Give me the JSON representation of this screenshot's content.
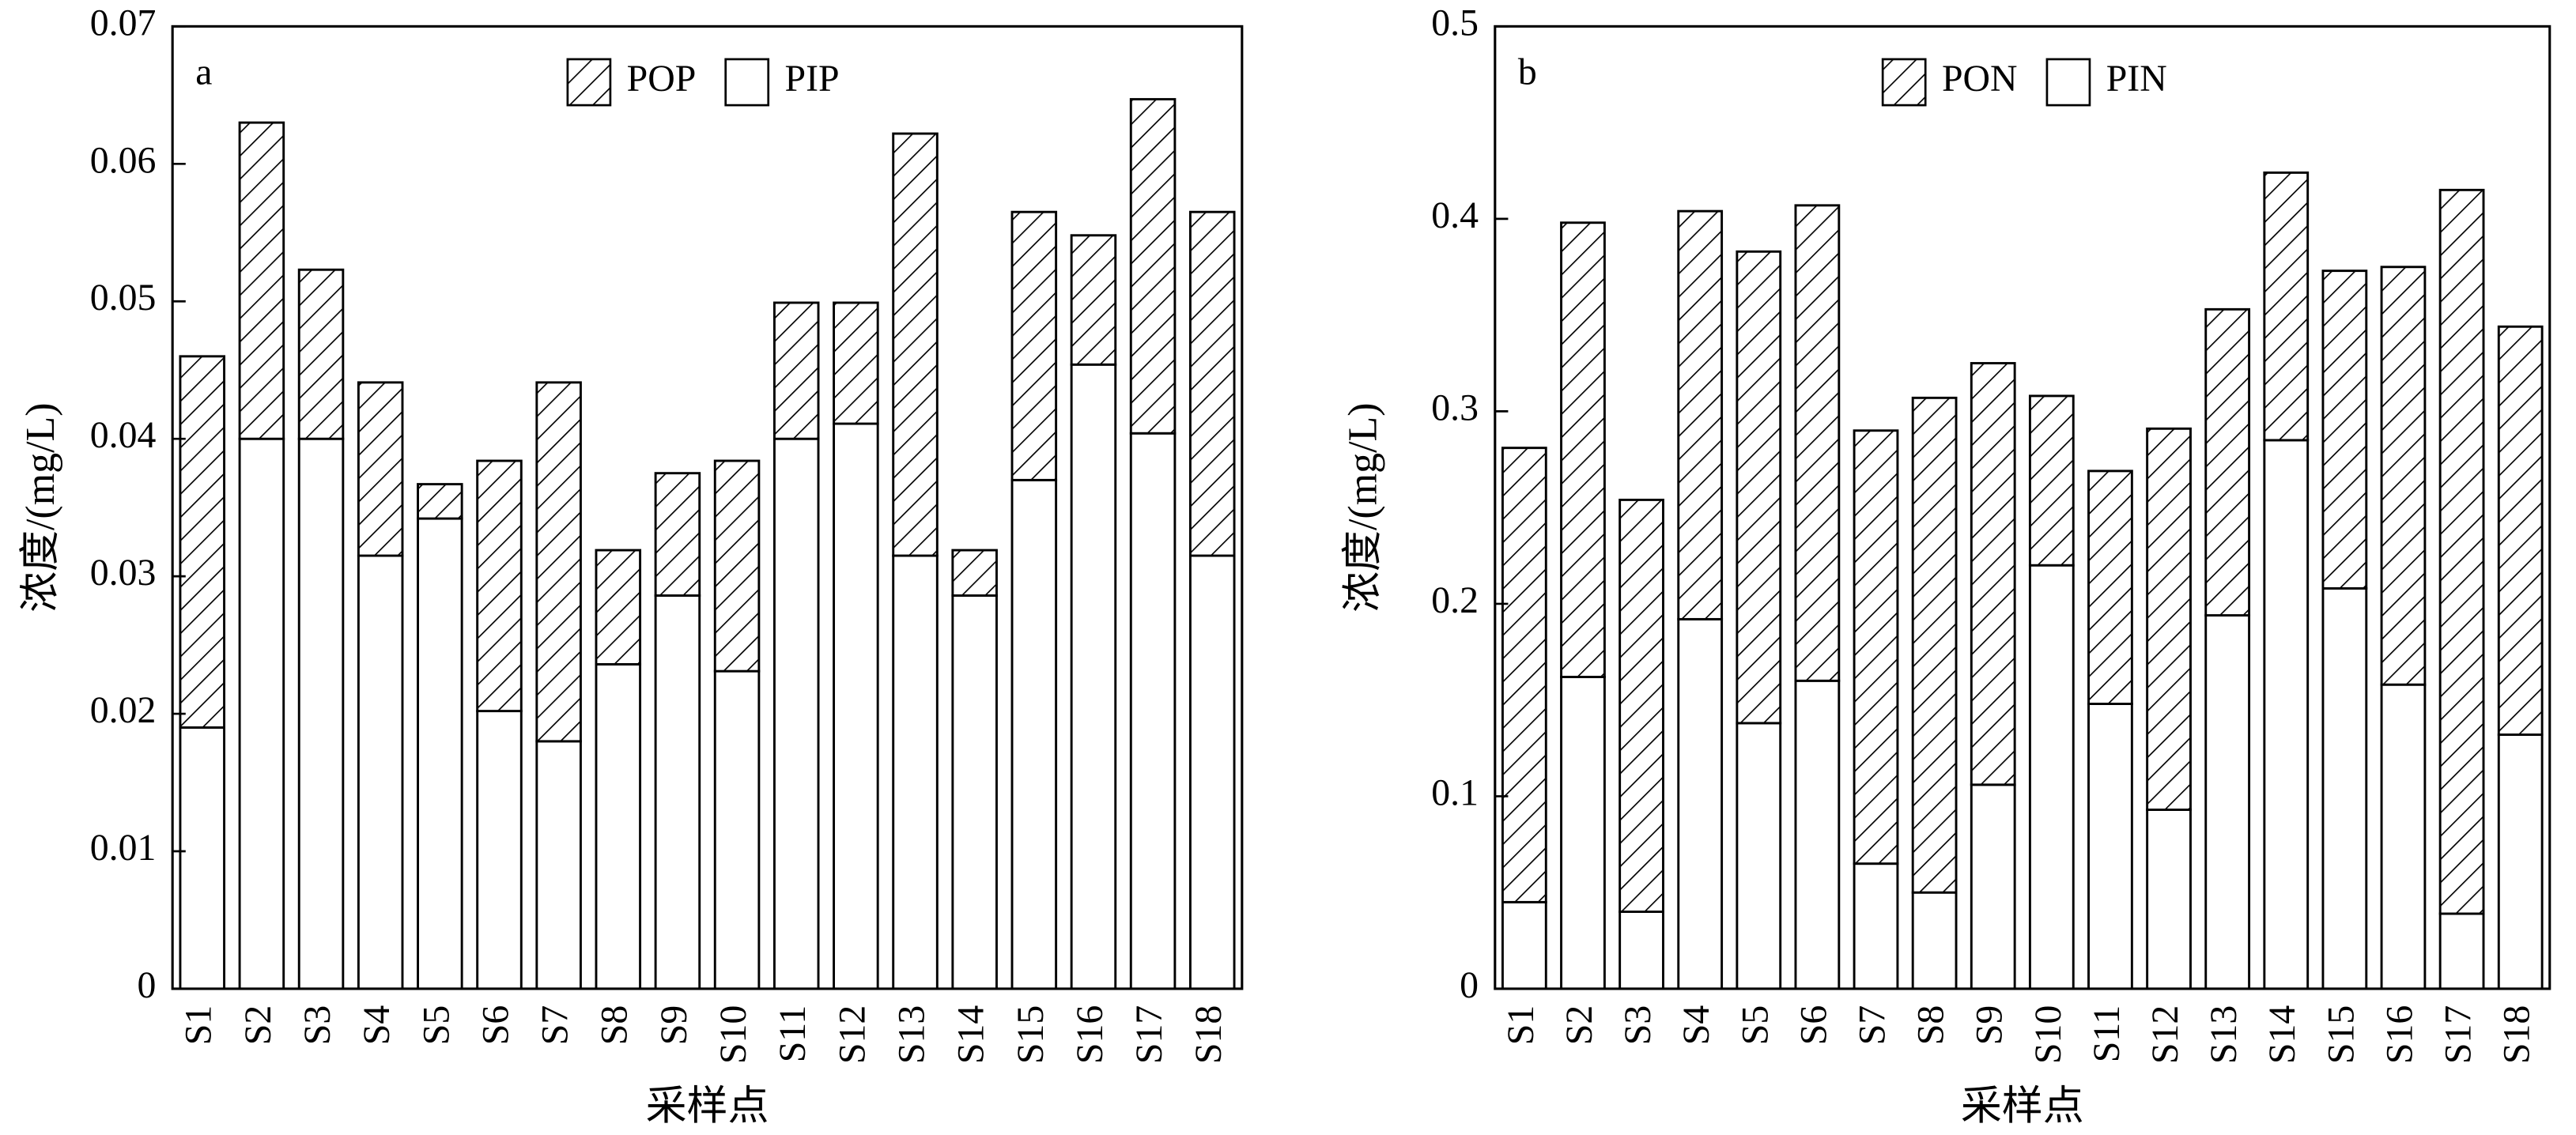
{
  "chart_data": [
    {
      "type": "bar",
      "stacked": true,
      "panel_label": "a",
      "xlabel": "采样点",
      "ylabel": "浓度/(mg/L)",
      "legend": "upper center",
      "categories": [
        "S1",
        "S2",
        "S3",
        "S4",
        "S5",
        "S6",
        "S7",
        "S8",
        "S9",
        "S10",
        "S11",
        "S12",
        "S13",
        "S14",
        "S15",
        "S16",
        "S17",
        "S18"
      ],
      "series": [
        {
          "name": "POP",
          "pattern": "hatch",
          "values": [
            0.027,
            0.023,
            0.0123,
            0.0126,
            0.0025,
            0.0182,
            0.0261,
            0.0083,
            0.0089,
            0.0153,
            0.0099,
            0.0088,
            0.0307,
            0.0033,
            0.0195,
            0.0094,
            0.0243,
            0.025
          ]
        },
        {
          "name": "PIP",
          "color": "#ffffff",
          "values": [
            0.019,
            0.04,
            0.04,
            0.0315,
            0.0342,
            0.0202,
            0.018,
            0.0236,
            0.0286,
            0.0231,
            0.04,
            0.0411,
            0.0315,
            0.0286,
            0.037,
            0.0454,
            0.0404,
            0.0315
          ]
        }
      ],
      "ylim": [
        0,
        0.07
      ],
      "yticks": [
        0,
        0.01,
        0.02,
        0.03,
        0.04,
        0.05,
        0.06,
        0.07
      ]
    },
    {
      "type": "bar",
      "stacked": true,
      "panel_label": "b",
      "xlabel": "采样点",
      "ylabel": "浓度/(mg/L)",
      "legend": "upper center",
      "categories": [
        "S1",
        "S2",
        "S3",
        "S4",
        "S5",
        "S6",
        "S7",
        "S8",
        "S9",
        "S10",
        "S11",
        "S12",
        "S13",
        "S14",
        "S15",
        "S16",
        "S17",
        "S18"
      ],
      "series": [
        {
          "name": "PON",
          "pattern": "hatch",
          "values": [
            0.236,
            0.236,
            0.214,
            0.212,
            0.245,
            0.247,
            0.225,
            0.257,
            0.219,
            0.088,
            0.121,
            0.198,
            0.159,
            0.139,
            0.165,
            0.217,
            0.376,
            0.212
          ]
        },
        {
          "name": "PIN",
          "color": "#ffffff",
          "values": [
            0.045,
            0.162,
            0.04,
            0.192,
            0.138,
            0.16,
            0.065,
            0.05,
            0.106,
            0.22,
            0.148,
            0.093,
            0.194,
            0.285,
            0.208,
            0.158,
            0.039,
            0.132
          ]
        }
      ],
      "ylim": [
        0,
        0.5
      ],
      "yticks": [
        0,
        0.1,
        0.2,
        0.3,
        0.4,
        0.5
      ]
    }
  ]
}
